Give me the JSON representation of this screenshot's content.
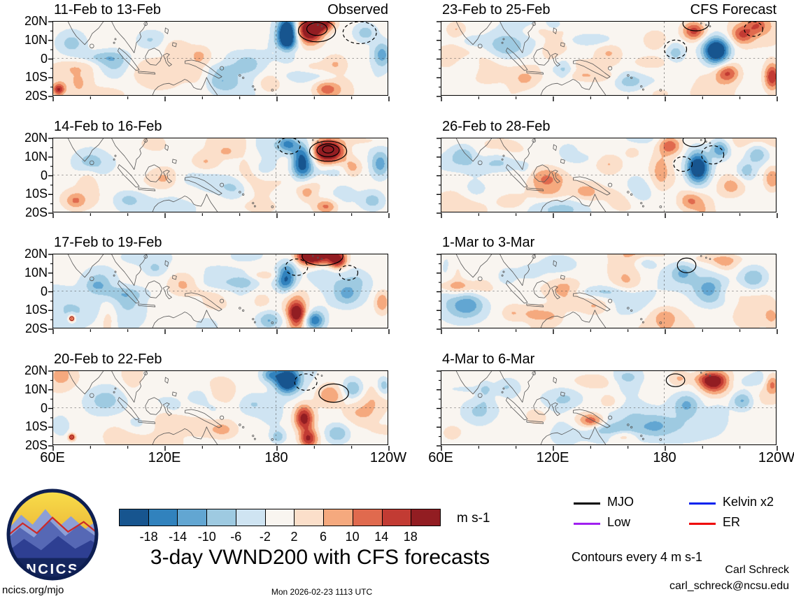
{
  "chart_data": {
    "type": "heatmap",
    "title": "3-day VWND200 with CFS forecasts",
    "units": "m s-1",
    "timestamp": "Mon 2026-02-23 1113 UTC",
    "contour_note": "Contours every 4 m s-1",
    "lon_range_deg_east": [
      60,
      240
    ],
    "lat_range": [
      -20,
      20
    ],
    "axes": {
      "lat_ticks": [
        "20N",
        "10N",
        "0",
        "10S",
        "20S"
      ],
      "lat_values": [
        20,
        10,
        0,
        -10,
        -20
      ],
      "lon_ticks": [
        "60E",
        "120E",
        "180",
        "120W"
      ],
      "lon_values": [
        60,
        120,
        180,
        240
      ]
    },
    "colorbar": {
      "label": "m s-1",
      "levels": [
        -18,
        -14,
        -10,
        -6,
        -2,
        2,
        6,
        10,
        14,
        18
      ],
      "tick_labels": [
        "-18",
        "-14",
        "-10",
        "-6",
        "-2",
        "2",
        "6",
        "10",
        "14",
        "18"
      ],
      "colors": [
        "#17558f",
        "#3182bd",
        "#62a6d2",
        "#9ecae1",
        "#cfe4f2",
        "#f9f5f0",
        "#fbdfca",
        "#f5a97e",
        "#e06a4e",
        "#c23b33",
        "#921d22"
      ]
    },
    "legend": [
      {
        "label": "MJO",
        "color": "#000000"
      },
      {
        "label": "Kelvin x2",
        "color": "#0022ee"
      },
      {
        "label": "Low",
        "color": "#a020f0"
      },
      {
        "label": "ER",
        "color": "#ee0000"
      }
    ],
    "column_headers": {
      "left": "Observed",
      "right": "CFS Forecast"
    },
    "panels": [
      {
        "title": "11-Feb to 13-Feb",
        "corner": "Observed",
        "seed": 101,
        "blobs": [
          [
            186,
            13,
            -30,
            5,
            9
          ],
          [
            198,
            15,
            28,
            7,
            7
          ],
          [
            205,
            19,
            20,
            6,
            4
          ],
          [
            228,
            14,
            -8,
            6,
            5
          ],
          [
            237,
            2,
            -12,
            5,
            7
          ],
          [
            212,
            -3,
            6,
            6,
            5
          ],
          [
            207,
            -17,
            10,
            6,
            4
          ],
          [
            63,
            -17,
            16,
            3,
            3
          ],
          [
            70,
            8,
            -8,
            8,
            7
          ],
          [
            93,
            -3,
            -8,
            9,
            7
          ],
          [
            112,
            10,
            -6,
            7,
            5
          ],
          [
            127,
            6,
            6,
            7,
            5
          ],
          [
            150,
            -12,
            -8,
            8,
            6
          ],
          [
            166,
            -3,
            -6,
            8,
            6
          ],
          [
            176,
            -14,
            6,
            6,
            5
          ],
          [
            139,
            2,
            5,
            6,
            5
          ]
        ],
        "contours": [
          [
            202,
            15,
            10,
            6,
            "s"
          ],
          [
            202,
            16,
            5.5,
            3.5,
            "s"
          ],
          [
            225,
            14,
            9,
            6,
            "d"
          ]
        ],
        "storms": []
      },
      {
        "title": "14-Feb to 16-Feb",
        "corner": "",
        "seed": 102,
        "blobs": [
          [
            194,
            7,
            -26,
            6,
            9
          ],
          [
            186,
            17,
            -14,
            5,
            4
          ],
          [
            208,
            13,
            30,
            8,
            6
          ],
          [
            221,
            4,
            8,
            5,
            5
          ],
          [
            236,
            6,
            -12,
            5,
            7
          ],
          [
            232,
            -14,
            -8,
            6,
            5
          ],
          [
            207,
            -17,
            12,
            6,
            4
          ],
          [
            196,
            -10,
            6,
            5,
            5
          ],
          [
            80,
            7,
            -8,
            9,
            7
          ],
          [
            72,
            -14,
            8,
            5,
            4
          ],
          [
            100,
            -13,
            -6,
            8,
            5
          ],
          [
            120,
            -2,
            7,
            8,
            6
          ],
          [
            142,
            7,
            6,
            7,
            5
          ],
          [
            133,
            -10,
            5,
            6,
            5
          ],
          [
            158,
            -7,
            -7,
            8,
            6
          ],
          [
            172,
            3,
            -5,
            6,
            5
          ]
        ],
        "contours": [
          [
            208,
            13,
            10,
            5.5,
            "s"
          ],
          [
            208,
            13.5,
            6,
            3.5,
            "s"
          ],
          [
            208,
            14,
            3,
            2,
            "s"
          ],
          [
            187,
            16,
            6,
            4.5,
            "d"
          ]
        ],
        "storms": []
      },
      {
        "title": "17-Feb to 19-Feb",
        "corner": "",
        "seed": 103,
        "blobs": [
          [
            199,
            19,
            28,
            9,
            5
          ],
          [
            213,
            17,
            22,
            5,
            5
          ],
          [
            185,
            7,
            -18,
            5,
            7
          ],
          [
            191,
            -13,
            26,
            5,
            7
          ],
          [
            201,
            -16,
            -16,
            5,
            5
          ],
          [
            176,
            -16,
            -10,
            6,
            5
          ],
          [
            218,
            -2,
            -8,
            7,
            6
          ],
          [
            237,
            -6,
            10,
            4,
            6
          ],
          [
            70,
            -15,
            18,
            2,
            2
          ],
          [
            85,
            6,
            -7,
            9,
            7
          ],
          [
            100,
            -5,
            -5,
            8,
            6
          ],
          [
            115,
            12,
            -6,
            6,
            4
          ],
          [
            130,
            4,
            7,
            8,
            6
          ],
          [
            148,
            -6,
            7,
            8,
            5
          ],
          [
            163,
            5,
            -6,
            7,
            5
          ],
          [
            172,
            -5,
            5,
            6,
            5
          ]
        ],
        "contours": [
          [
            205,
            19,
            11,
            5,
            "s"
          ],
          [
            191,
            13,
            6,
            4.5,
            "d"
          ],
          [
            219,
            10,
            5,
            4,
            "d"
          ]
        ],
        "storms": [
          [
            70,
            -15
          ]
        ]
      },
      {
        "title": "20-Feb to 22-Feb",
        "corner": "",
        "seed": 104,
        "blobs": [
          [
            186,
            15,
            -26,
            6,
            6
          ],
          [
            177,
            18,
            -12,
            5,
            4
          ],
          [
            195,
            -6,
            22,
            5,
            7
          ],
          [
            197,
            -17,
            20,
            5,
            5
          ],
          [
            209,
            7,
            10,
            7,
            6
          ],
          [
            222,
            10,
            -6,
            6,
            5
          ],
          [
            238,
            12,
            -10,
            4,
            6
          ],
          [
            213,
            -14,
            -10,
            6,
            5
          ],
          [
            181,
            -16,
            -10,
            4,
            4
          ],
          [
            70,
            -16,
            16,
            2,
            2
          ],
          [
            88,
            4,
            -8,
            11,
            8
          ],
          [
            104,
            -10,
            -6,
            8,
            6
          ],
          [
            122,
            -6,
            6,
            8,
            6
          ],
          [
            140,
            6,
            -6,
            7,
            5
          ],
          [
            152,
            -12,
            6,
            7,
            5
          ],
          [
            167,
            2,
            -6,
            8,
            6
          ]
        ],
        "contours": [
          [
            211,
            8,
            8,
            5,
            "s"
          ],
          [
            196,
            14,
            6,
            4.5,
            "d"
          ]
        ],
        "storms": [
          [
            70,
            -16
          ]
        ]
      },
      {
        "title": "23-Feb to 25-Feb",
        "corner": "CFS Forecast",
        "seed": 105,
        "blobs": [
          [
            208,
            4,
            -30,
            7,
            7
          ],
          [
            196,
            15,
            16,
            6,
            5
          ],
          [
            222,
            13,
            12,
            6,
            5
          ],
          [
            214,
            -8,
            14,
            6,
            5
          ],
          [
            238,
            -10,
            18,
            4,
            7
          ],
          [
            230,
            18,
            8,
            5,
            4
          ],
          [
            186,
            3,
            -8,
            5,
            5
          ],
          [
            175,
            10,
            6,
            6,
            5
          ],
          [
            160,
            -12,
            -8,
            8,
            6
          ],
          [
            150,
            3,
            6,
            7,
            5
          ],
          [
            135,
            -6,
            7,
            8,
            5
          ],
          [
            120,
            6,
            7,
            8,
            6
          ],
          [
            105,
            -12,
            6,
            7,
            5
          ],
          [
            95,
            8,
            -6,
            8,
            6
          ],
          [
            75,
            -4,
            -7,
            8,
            7
          ],
          [
            68,
            16,
            6,
            5,
            4
          ]
        ],
        "contours": [
          [
            197,
            19,
            7,
            4,
            "s"
          ],
          [
            186,
            5,
            6,
            5,
            "d"
          ],
          [
            228,
            16,
            5,
            4,
            "d"
          ]
        ],
        "storms": []
      },
      {
        "title": "26-Feb to 28-Feb",
        "corner": "",
        "seed": 106,
        "blobs": [
          [
            198,
            4,
            -28,
            6,
            8
          ],
          [
            210,
            14,
            -14,
            5,
            5
          ],
          [
            183,
            16,
            14,
            6,
            5
          ],
          [
            194,
            -14,
            10,
            6,
            5
          ],
          [
            216,
            -6,
            8,
            7,
            6
          ],
          [
            230,
            12,
            -10,
            6,
            6
          ],
          [
            238,
            -2,
            10,
            4,
            6
          ],
          [
            224,
            2,
            -8,
            5,
            5
          ],
          [
            165,
            -5,
            -6,
            8,
            6
          ],
          [
            150,
            6,
            6,
            7,
            5
          ],
          [
            138,
            -9,
            8,
            7,
            5
          ],
          [
            115,
            -2,
            7,
            9,
            7
          ],
          [
            98,
            -14,
            6,
            7,
            4
          ],
          [
            90,
            8,
            -6,
            8,
            6
          ],
          [
            72,
            12,
            -7,
            7,
            5
          ],
          [
            78,
            -8,
            -5,
            7,
            6
          ]
        ],
        "contours": [
          [
            196,
            19,
            6,
            3.5,
            "s"
          ],
          [
            206,
            11,
            6,
            5,
            "d"
          ],
          [
            190,
            6,
            5,
            4,
            "d"
          ]
        ],
        "storms": []
      },
      {
        "title": "1-Mar to 3-Mar",
        "corner": "",
        "seed": 107,
        "blobs": [
          [
            205,
            0,
            -16,
            9,
            7
          ],
          [
            228,
            7,
            -10,
            7,
            6
          ],
          [
            190,
            10,
            -8,
            6,
            5
          ],
          [
            213,
            15,
            6,
            6,
            4
          ],
          [
            180,
            -13,
            6,
            8,
            5
          ],
          [
            160,
            4,
            6,
            8,
            6
          ],
          [
            143,
            -8,
            7,
            8,
            5
          ],
          [
            126,
            1,
            8,
            9,
            7
          ],
          [
            110,
            -13,
            6,
            7,
            4
          ],
          [
            95,
            6,
            -7,
            9,
            7
          ],
          [
            108,
            10,
            -5,
            6,
            4
          ],
          [
            75,
            -8,
            -6,
            8,
            6
          ],
          [
            170,
            16,
            -5,
            6,
            4
          ],
          [
            238,
            -14,
            6,
            4,
            5
          ]
        ],
        "contours": [
          [
            192,
            14,
            5,
            4,
            "s"
          ]
        ],
        "storms": []
      },
      {
        "title": "4-Mar to 6-Mar",
        "corner": "",
        "seed": 108,
        "blobs": [
          [
            206,
            14,
            18,
            7,
            5
          ],
          [
            238,
            13,
            12,
            4,
            5
          ],
          [
            222,
            4,
            -12,
            6,
            5
          ],
          [
            192,
            2,
            -10,
            7,
            6
          ],
          [
            175,
            -10,
            -7,
            8,
            6
          ],
          [
            158,
            -15,
            7,
            7,
            4
          ],
          [
            141,
            -7,
            14,
            7,
            4
          ],
          [
            150,
            3,
            6,
            6,
            5
          ],
          [
            128,
            5,
            -6,
            8,
            6
          ],
          [
            112,
            -4,
            6,
            8,
            6
          ],
          [
            95,
            12,
            -6,
            7,
            5
          ],
          [
            80,
            -2,
            -7,
            9,
            7
          ],
          [
            66,
            -14,
            6,
            5,
            4
          ],
          [
            188,
            16,
            6,
            5,
            4
          ]
        ],
        "contours": [
          [
            186,
            15,
            5,
            3.5,
            "s"
          ]
        ],
        "storms": []
      }
    ]
  },
  "footer": {
    "site": "ncics.org/mjo",
    "author": "Carl Schreck",
    "email": "carl_schreck@ncsu.edu",
    "logo_text": "NCICS"
  }
}
